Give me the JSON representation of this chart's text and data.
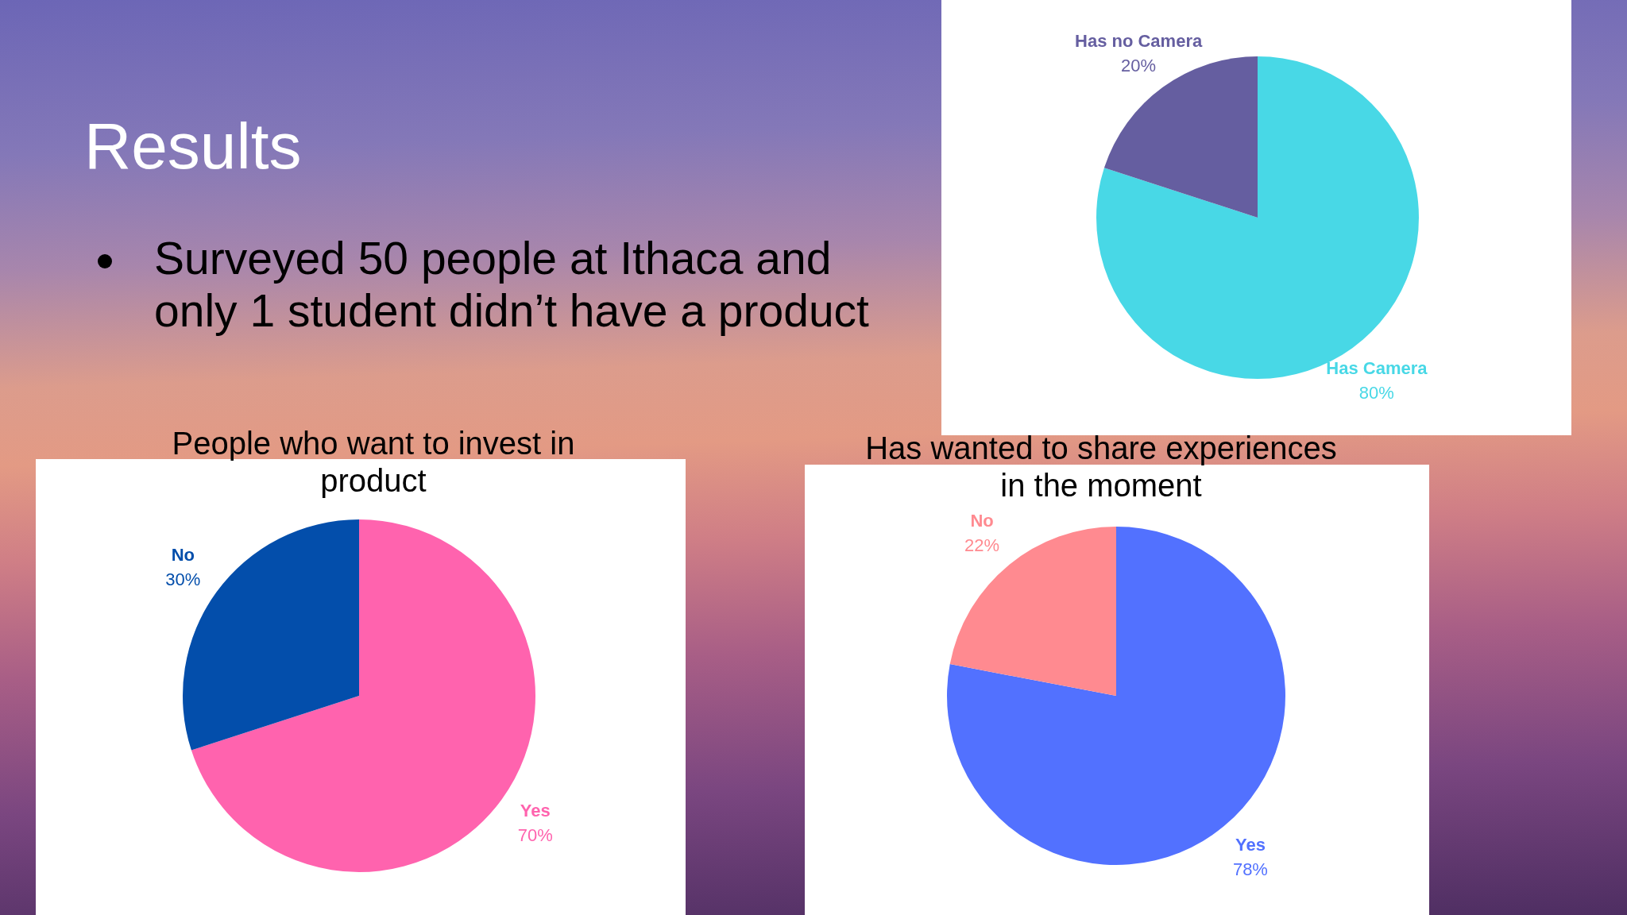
{
  "chart_data": [
    {
      "type": "other",
      "title": "Results",
      "annotations": [
        "Surveyed 50 people at Ithaca and only 1 student didn’t have a product"
      ]
    },
    {
      "type": "pie",
      "categories": [
        "Has Camera",
        "Has no Camera"
      ],
      "values": [
        80,
        20
      ],
      "colors": [
        "#48d8e6",
        "#655ea0"
      ],
      "value_labels": [
        "80%",
        "20%"
      ]
    },
    {
      "type": "pie",
      "title": "People who want to invest in product",
      "categories": [
        "Yes",
        "No"
      ],
      "values": [
        70,
        30
      ],
      "colors": [
        "#ff63ae",
        "#034eab"
      ],
      "value_labels": [
        "70%",
        "30%"
      ]
    },
    {
      "type": "pie",
      "title": "Has wanted to share experiences in the moment",
      "categories": [
        "Yes",
        "No"
      ],
      "values": [
        78,
        22
      ],
      "colors": [
        "#5271ff",
        "#ff8a90"
      ],
      "value_labels": [
        "78%",
        "22%"
      ]
    }
  ]
}
